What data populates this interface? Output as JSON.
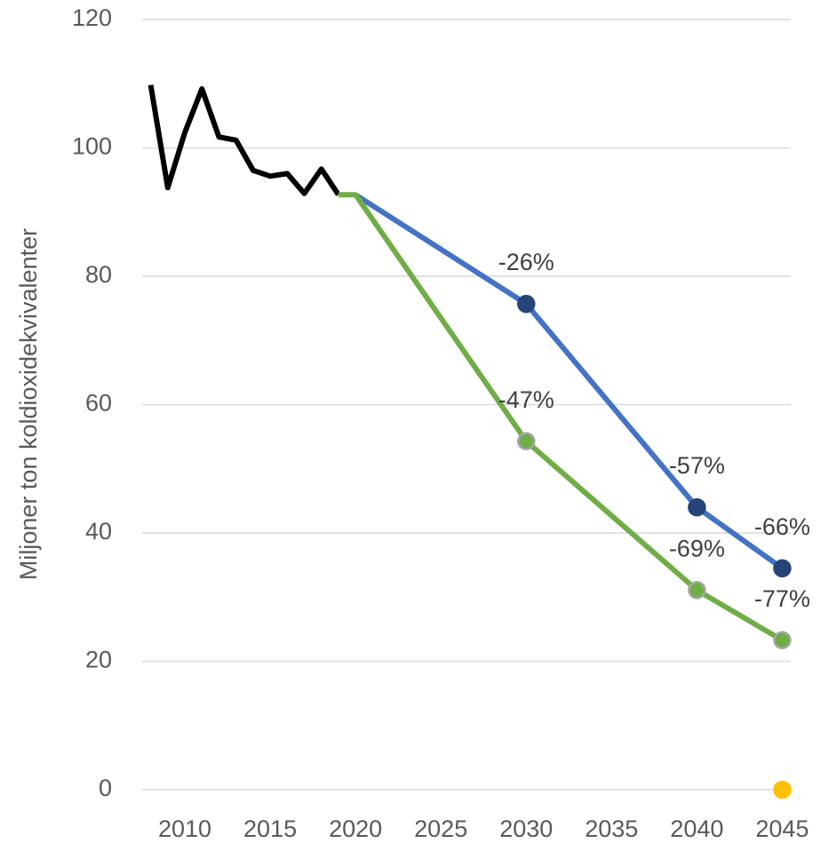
{
  "chart_data": {
    "type": "line",
    "ylabel": "Miljoner ton koldioxidekvivalenter",
    "xlim": [
      2007.5,
      2045.5
    ],
    "xticks": [
      2010,
      2015,
      2020,
      2025,
      2030,
      2035,
      2040,
      2045
    ],
    "ylim": [
      0,
      120
    ],
    "yticks": [
      0,
      20,
      40,
      60,
      80,
      100,
      120
    ],
    "grid": true,
    "series": [
      {
        "color": "#000000",
        "x": [
          2008,
          2009,
          2010,
          2011,
          2012,
          2013,
          2014,
          2015,
          2016,
          2017,
          2018,
          2019
        ],
        "values": [
          109.8,
          93.8,
          102.4,
          109.2,
          101.7,
          101.2,
          96.5,
          95.6,
          96,
          92.9,
          96.7,
          92.7
        ]
      },
      {
        "color": "#4472c4",
        "marker_color": "#264478",
        "x": [
          2020,
          2030,
          2040,
          2045
        ],
        "values": [
          92.7,
          75.7,
          44.0,
          34.5
        ],
        "value_labels": [
          null,
          "-26%",
          "-57%",
          "-66%"
        ]
      },
      {
        "color": "#70ad47",
        "marker_color": "#70ad47",
        "marker_stroke": "#a5a5a5",
        "x": [
          2019,
          2020,
          2030,
          2040,
          2045
        ],
        "values": [
          92.7,
          92.7,
          54.3,
          31.1,
          23.3
        ],
        "value_labels": [
          null,
          null,
          "-47%",
          "-69%",
          "-77%"
        ]
      },
      {
        "color": "#ffc000",
        "marker_color": "#ffc000",
        "line": false,
        "x": [
          2045
        ],
        "values": [
          0
        ]
      }
    ]
  }
}
